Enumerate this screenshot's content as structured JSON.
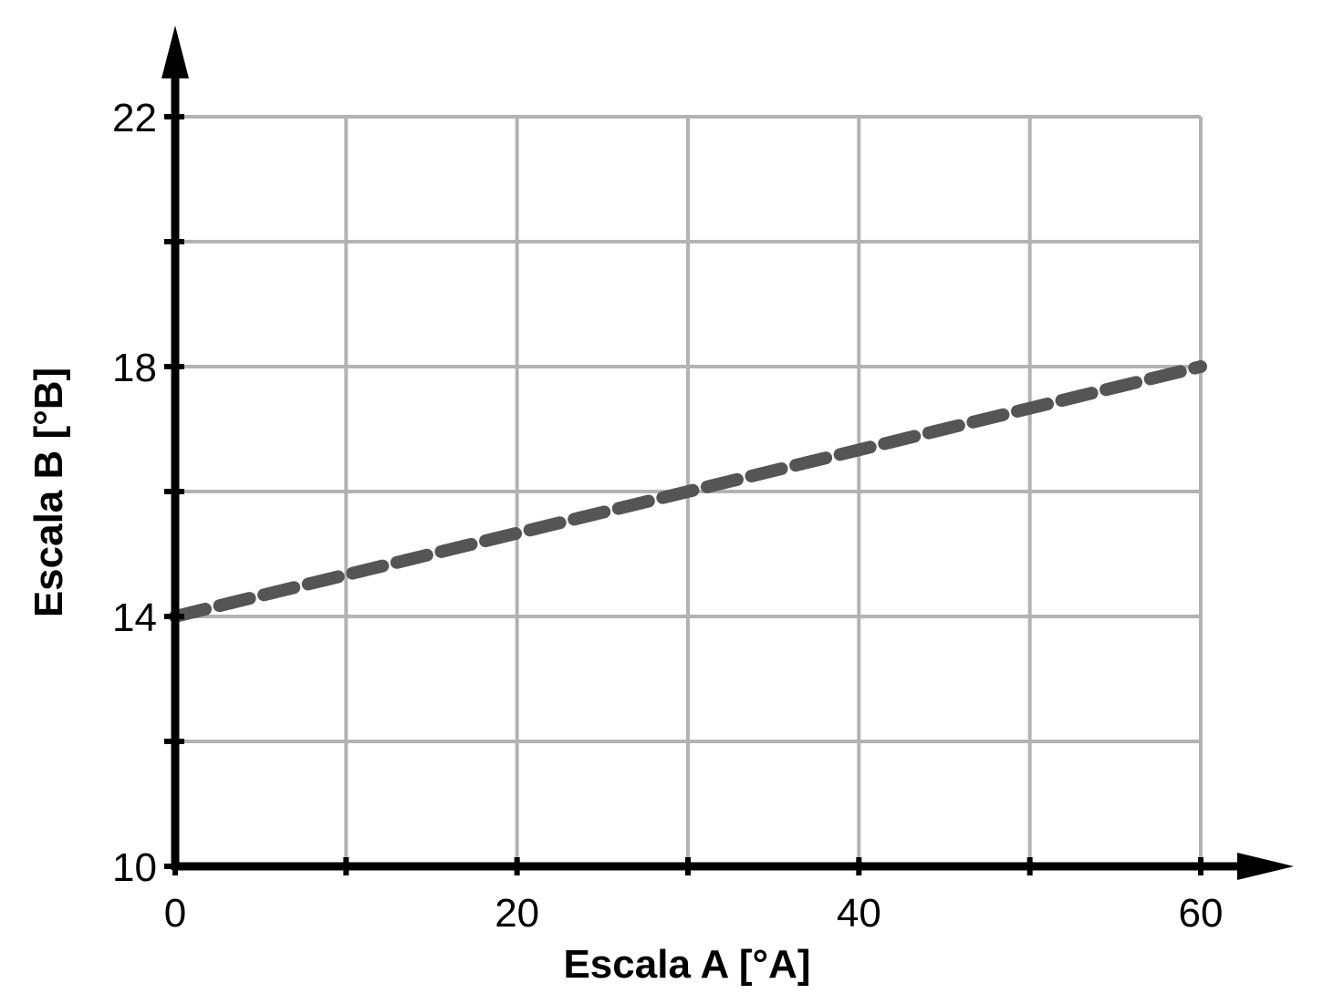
{
  "chart_data": {
    "type": "line",
    "title": "",
    "xlabel": "Escala A [°A]",
    "ylabel": "Escala B [°B]",
    "xlim": [
      0,
      60
    ],
    "ylim": [
      10,
      22
    ],
    "x_ticks": [
      0,
      10,
      20,
      30,
      40,
      50,
      60
    ],
    "y_ticks": [
      10,
      12,
      14,
      16,
      18,
      20,
      22
    ],
    "x_tick_labels": [
      {
        "value": 0,
        "label": "0"
      },
      {
        "value": 20,
        "label": "20"
      },
      {
        "value": 40,
        "label": "40"
      },
      {
        "value": 60,
        "label": "60"
      }
    ],
    "y_tick_labels": [
      {
        "value": 10,
        "label": "10"
      },
      {
        "value": 14,
        "label": "14"
      },
      {
        "value": 18,
        "label": "18"
      },
      {
        "value": 22,
        "label": "22"
      }
    ],
    "grid": true,
    "legend": "none",
    "series": [
      {
        "x": [
          0,
          60
        ],
        "y": [
          14,
          18
        ],
        "style": "dashed",
        "color": "#555555"
      }
    ]
  },
  "colors": {
    "axis": "#000000",
    "grid": "#b3b3b3",
    "line": "#555555"
  }
}
